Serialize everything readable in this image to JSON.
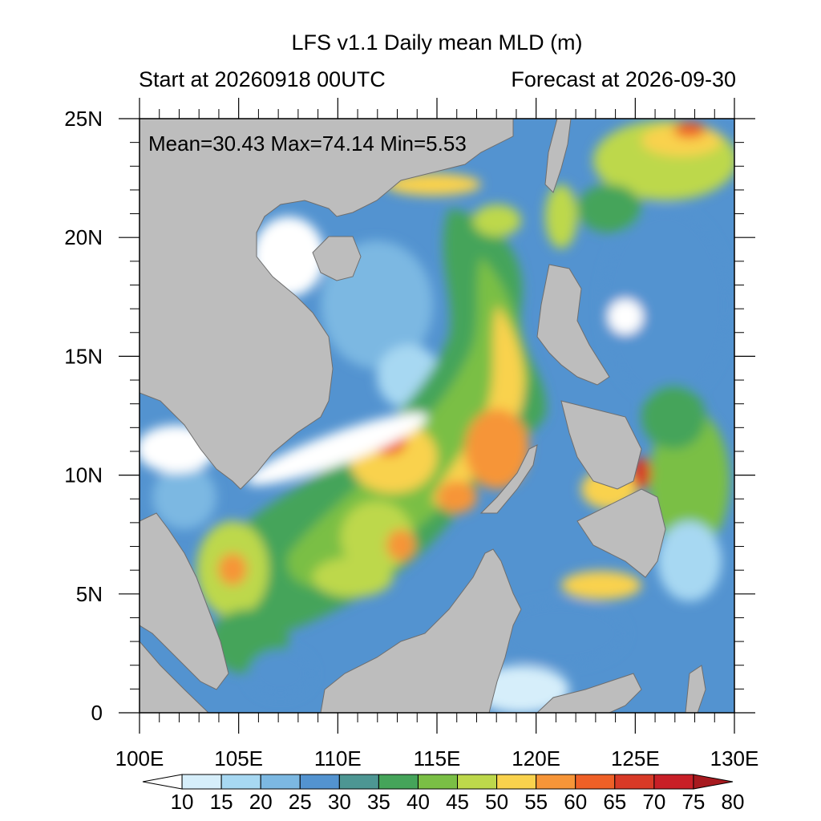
{
  "title": "LFS v1.1 Daily mean MLD (m)",
  "subtitle_left": "Start at 20260918 00UTC",
  "subtitle_right": "Forecast at 2026-09-30",
  "stats_text": "Mean=30.43  Max=74.14  Min=5.53",
  "stats": {
    "mean": 30.43,
    "max": 74.14,
    "min": 5.53
  },
  "lon_ticks": [
    {
      "value": 100,
      "label": "100E"
    },
    {
      "value": 105,
      "label": "105E"
    },
    {
      "value": 110,
      "label": "110E"
    },
    {
      "value": 115,
      "label": "115E"
    },
    {
      "value": 120,
      "label": "120E"
    },
    {
      "value": 125,
      "label": "125E"
    },
    {
      "value": 130,
      "label": "130E"
    }
  ],
  "lat_ticks": [
    {
      "value": 0,
      "label": "0"
    },
    {
      "value": 5,
      "label": "5N"
    },
    {
      "value": 10,
      "label": "10N"
    },
    {
      "value": 15,
      "label": "15N"
    },
    {
      "value": 20,
      "label": "20N"
    },
    {
      "value": 25,
      "label": "25N"
    }
  ],
  "colorbar": {
    "levels": [
      "10",
      "15",
      "20",
      "25",
      "30",
      "35",
      "40",
      "45",
      "50",
      "55",
      "60",
      "65",
      "70",
      "75",
      "80"
    ],
    "colors": [
      "#ffffff",
      "#d6eefa",
      "#a7d8f2",
      "#7cb8e2",
      "#5393d0",
      "#4d9693",
      "#45a45a",
      "#7abf45",
      "#bdd84b",
      "#f9d24d",
      "#f69538",
      "#ef6027",
      "#d83a27",
      "#c81f27",
      "#a71a1f"
    ]
  },
  "map": {
    "lon_range": [
      100,
      130
    ],
    "lat_range": [
      0,
      25
    ],
    "land_color": "#bdbdbd",
    "coast_color": "#6e6e6e"
  }
}
